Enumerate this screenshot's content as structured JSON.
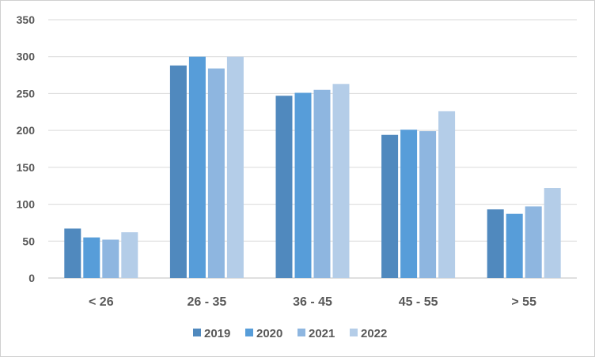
{
  "chart_data": {
    "type": "bar",
    "categories": [
      "< 26",
      "26 - 35",
      "36 - 45",
      "45 - 55",
      "> 55"
    ],
    "series": [
      {
        "name": "2019",
        "color": "#5089BE",
        "values": [
          67,
          288,
          247,
          194,
          93
        ]
      },
      {
        "name": "2020",
        "color": "#579DD9",
        "values": [
          55,
          300,
          251,
          201,
          87
        ]
      },
      {
        "name": "2021",
        "color": "#8EB6E0",
        "values": [
          52,
          284,
          255,
          199,
          97
        ]
      },
      {
        "name": "2022",
        "color": "#B4CDE8",
        "values": [
          62,
          300,
          263,
          226,
          122
        ]
      }
    ],
    "yticks": [
      "0",
      "50",
      "100",
      "150",
      "200",
      "250",
      "300",
      "350"
    ],
    "ylim": [
      0,
      350
    ],
    "grid": true,
    "legend_position": "bottom"
  }
}
